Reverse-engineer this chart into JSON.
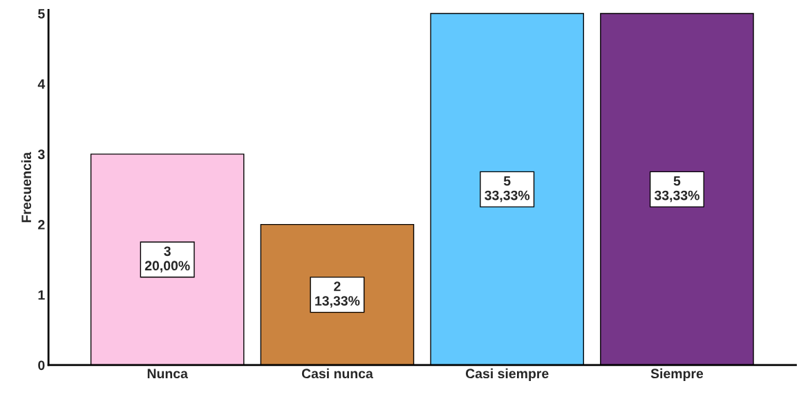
{
  "chart_data": {
    "type": "bar",
    "ylabel": "Frecuencia",
    "categories": [
      "Nunca",
      "Casi nunca",
      "Casi siempre",
      "Siempre"
    ],
    "values": [
      3,
      2,
      5,
      5
    ],
    "colors": [
      "#fcc5e4",
      "#cb8440",
      "#62c8fe",
      "#763689"
    ],
    "value_labels": [
      "3\n20,00%",
      "2\n13,33%",
      "5\n33,33%",
      "5\n33,33%"
    ],
    "ylim": [
      0,
      5.05
    ],
    "yticks": [
      0,
      1,
      2,
      3,
      4,
      5
    ],
    "grid": false,
    "legend": false
  }
}
